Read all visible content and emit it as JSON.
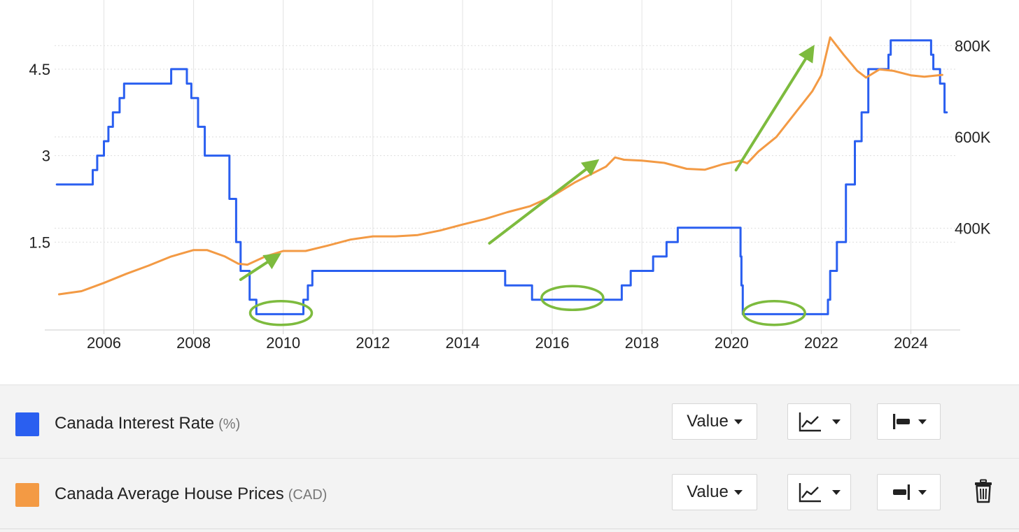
{
  "chart_data": {
    "type": "line",
    "x_axis": {
      "ticks": [
        "2006",
        "2008",
        "2010",
        "2012",
        "2014",
        "2016",
        "2018",
        "2020",
        "2022",
        "2024"
      ],
      "range": [
        2004.9,
        2024.85
      ]
    },
    "y_left": {
      "ticks": [
        "1.5",
        "3",
        "4.5"
      ],
      "range": [
        0.0,
        5.7
      ],
      "unit": "%"
    },
    "y_right": {
      "ticks": [
        "400K",
        "600K",
        "800K"
      ],
      "range": [
        180000,
        900000
      ]
    },
    "grid": true,
    "series": [
      {
        "name": "Canada Interest Rate",
        "axis": "left",
        "color": "#2a5ff0",
        "step": true,
        "x": [
          2004.95,
          2005.75,
          2005.85,
          2006.0,
          2006.1,
          2006.2,
          2006.35,
          2006.45,
          2007.5,
          2007.85,
          2007.95,
          2008.1,
          2008.25,
          2008.35,
          2008.8,
          2008.95,
          2009.05,
          2009.12,
          2009.25,
          2009.3,
          2009.4,
          2010.45,
          2010.55,
          2010.65,
          2010.75,
          2014.95,
          2015.55,
          2017.55,
          2017.6,
          2017.75,
          2018.0,
          2018.25,
          2018.55,
          2018.8,
          2020.2,
          2020.22,
          2020.25,
          2022.15,
          2022.2,
          2022.35,
          2022.55,
          2022.7,
          2022.75,
          2022.9,
          2023.05,
          2023.5,
          2023.55,
          2024.45,
          2024.5,
          2024.55,
          2024.65,
          2024.75,
          2024.8
        ],
        "y": [
          2.5,
          2.75,
          3.0,
          3.25,
          3.5,
          3.75,
          4.0,
          4.25,
          4.5,
          4.25,
          4.0,
          3.5,
          3.0,
          3.0,
          2.25,
          1.5,
          1.0,
          1.0,
          0.5,
          0.5,
          0.25,
          0.5,
          0.75,
          1.0,
          1.0,
          0.75,
          0.5,
          0.75,
          0.75,
          1.0,
          1.0,
          1.25,
          1.5,
          1.75,
          1.25,
          0.75,
          0.25,
          0.5,
          1.0,
          1.5,
          2.5,
          2.5,
          3.25,
          3.75,
          4.5,
          4.75,
          5.0,
          4.75,
          4.5,
          4.5,
          4.25,
          3.75,
          3.75
        ]
      },
      {
        "name": "Canada Average House Prices",
        "axis": "right",
        "color": "#f39a44",
        "step": false,
        "x": [
          2005.0,
          2005.5,
          2006.0,
          2006.5,
          2007.0,
          2007.5,
          2008.0,
          2008.3,
          2008.7,
          2009.0,
          2009.2,
          2009.6,
          2010.0,
          2010.5,
          2011.0,
          2011.5,
          2012.0,
          2012.5,
          2013.0,
          2013.5,
          2014.0,
          2014.5,
          2015.0,
          2015.5,
          2016.0,
          2016.5,
          2017.0,
          2017.2,
          2017.4,
          2017.6,
          2018.0,
          2018.5,
          2019.0,
          2019.4,
          2019.8,
          2020.2,
          2020.35,
          2020.6,
          2021.0,
          2021.4,
          2021.8,
          2022.0,
          2022.2,
          2022.5,
          2022.8,
          2023.0,
          2023.3,
          2023.6,
          2024.0,
          2024.3,
          2024.6,
          2024.7
        ],
        "y": [
          255000,
          262000,
          280000,
          300000,
          318000,
          338000,
          352000,
          352000,
          338000,
          322000,
          320000,
          338000,
          350000,
          350000,
          362000,
          375000,
          382000,
          382000,
          385000,
          395000,
          408000,
          420000,
          435000,
          448000,
          470000,
          500000,
          525000,
          535000,
          555000,
          550000,
          548000,
          543000,
          530000,
          528000,
          540000,
          548000,
          542000,
          568000,
          600000,
          650000,
          700000,
          735000,
          818000,
          780000,
          745000,
          730000,
          748000,
          745000,
          735000,
          732000,
          735000,
          736000
        ]
      }
    ],
    "annotations": {
      "circles": [
        {
          "x": 2009.95,
          "y": 0.27
        },
        {
          "x": 2016.45,
          "y": 0.53
        },
        {
          "x": 2020.95,
          "y": 0.27
        }
      ],
      "arrows": [
        {
          "x1": 2009.05,
          "y1": 0.85,
          "x2": 2009.8,
          "y2": 1.23
        },
        {
          "x1": 2014.6,
          "y1": 1.48,
          "x2": 2016.9,
          "y2": 2.85
        },
        {
          "x1": 2020.1,
          "y1": 2.75,
          "x2": 2021.75,
          "y2": 4.8
        }
      ],
      "color": "#7dbb3e"
    }
  },
  "legend": {
    "items": [
      {
        "name": "Canada Interest Rate",
        "unit": "(%)",
        "color": "#2a5ff0",
        "value_label": "Value",
        "chart_type_icon": "line-chart-icon",
        "axis_icon": "left-axis-icon"
      },
      {
        "name": "Canada Average House Prices",
        "unit": "(CAD)",
        "color": "#f39a44",
        "value_label": "Value",
        "chart_type_icon": "line-chart-icon",
        "axis_icon": "right-axis-icon"
      }
    ],
    "delete_icon": "trash-icon"
  }
}
